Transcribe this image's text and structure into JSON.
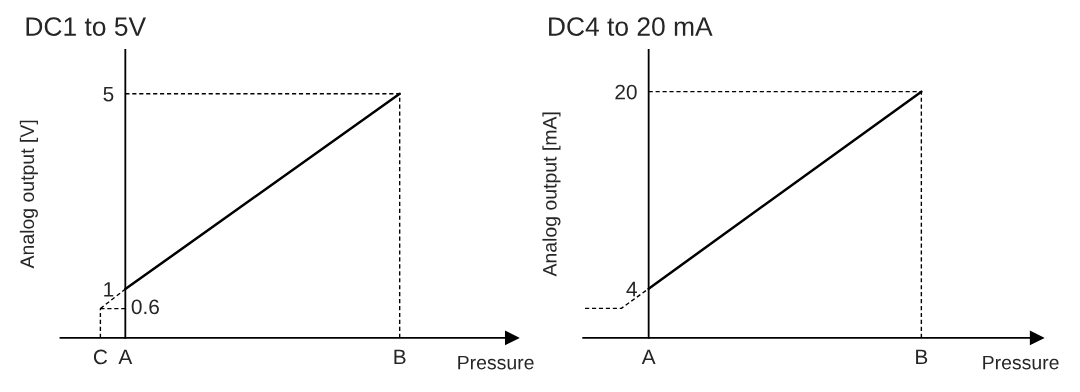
{
  "chart_data": [
    {
      "type": "line",
      "title": "DC1 to 5V",
      "xlabel": "Pressure",
      "ylabel": "Analog output [V]",
      "categories": [
        "C",
        "A",
        null,
        null,
        null,
        null,
        null,
        null,
        null,
        null,
        null,
        null,
        "B"
      ],
      "ylim": [
        0,
        5.9
      ],
      "yticks": [
        1,
        5
      ],
      "series": [
        {
          "color": "#000000",
          "line_style": "solid",
          "values": [
            null,
            1,
            null,
            null,
            null,
            null,
            null,
            null,
            null,
            null,
            null,
            null,
            5
          ]
        },
        {
          "color": "#000000",
          "line_style": "dashed",
          "values": [
            null,
            5,
            null,
            null,
            null,
            null,
            null,
            null,
            null,
            null,
            null,
            null,
            5
          ]
        },
        {
          "color": "#000000",
          "line_style": "dashed",
          "values": [
            0.6,
            1,
            null,
            null,
            null,
            null,
            null,
            null,
            null,
            null,
            null,
            null,
            null
          ]
        },
        {
          "color": "#000000",
          "line_style": "dashed",
          "values": [
            0.6,
            0.6,
            null,
            null,
            null,
            null,
            null,
            null,
            null,
            null,
            null,
            null,
            null
          ]
        }
      ],
      "ref_lines": [
        {
          "axis": "x",
          "value": "C",
          "line_style": "dashed",
          "color": "#000000"
        },
        {
          "axis": "x",
          "value": "B",
          "line_style": "dashed",
          "color": "#000000"
        }
      ],
      "annotations": [
        {
          "text": "0.6",
          "x": "A",
          "y": 0.6
        }
      ]
    },
    {
      "type": "line",
      "title": "DC4 to 20 mA",
      "xlabel": "Pressure",
      "ylabel": "Analog output [mA]",
      "categories": [
        null,
        null,
        null,
        null,
        null,
        null,
        null,
        "A",
        null,
        null,
        null,
        null,
        null,
        null,
        null,
        null,
        null,
        null,
        null,
        null,
        null,
        null,
        null,
        null,
        null,
        null,
        null,
        null,
        null,
        null,
        null,
        null,
        null,
        null,
        null,
        null,
        null,
        "B"
      ],
      "ylim": [
        0,
        23.4
      ],
      "yticks": [
        4,
        20
      ],
      "series": [
        {
          "color": "#000000",
          "line_style": "solid",
          "values": [
            null,
            null,
            null,
            null,
            null,
            null,
            null,
            4,
            null,
            null,
            null,
            null,
            null,
            null,
            null,
            null,
            null,
            null,
            null,
            null,
            null,
            null,
            null,
            null,
            null,
            null,
            null,
            null,
            null,
            null,
            null,
            null,
            null,
            null,
            null,
            null,
            null,
            20
          ]
        },
        {
          "color": "#000000",
          "line_style": "dashed",
          "values": [
            null,
            null,
            null,
            null,
            null,
            null,
            null,
            20,
            null,
            null,
            null,
            null,
            null,
            null,
            null,
            null,
            null,
            null,
            null,
            null,
            null,
            null,
            null,
            null,
            null,
            null,
            null,
            null,
            null,
            null,
            null,
            null,
            null,
            null,
            null,
            null,
            null,
            20
          ]
        },
        {
          "color": "#000000",
          "line_style": "dashed",
          "values": [
            2.4,
            null,
            null,
            null,
            2.4,
            null,
            null,
            4,
            null,
            null,
            null,
            null,
            null,
            null,
            null,
            null,
            null,
            null,
            null,
            null,
            null,
            null,
            null,
            null,
            null,
            null,
            null,
            null,
            null,
            null,
            null,
            null,
            null,
            null,
            null,
            null,
            null,
            null
          ]
        }
      ],
      "ref_lines": [
        {
          "axis": "x",
          "value": "B",
          "line_style": "dashed",
          "color": "#000000"
        }
      ]
    }
  ]
}
